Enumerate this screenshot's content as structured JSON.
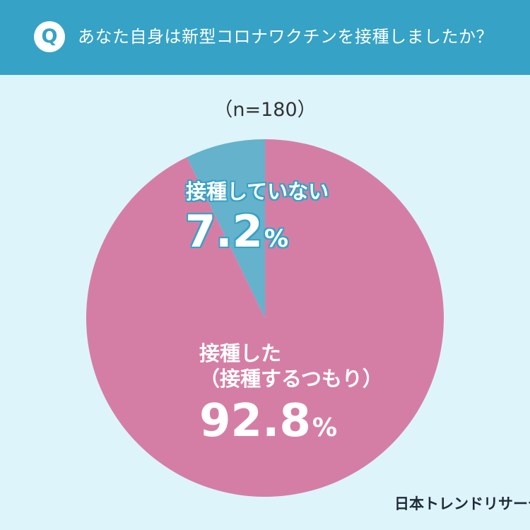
{
  "header": {
    "badge": "Q",
    "question": "あなた自身は新型コロナワクチンを接種しましたか？"
  },
  "sample_size": "（n=180）",
  "logo_text": "日本トレンドリサーチ",
  "colors": {
    "header_bg": "#35a2c6",
    "page_bg": "#ddf4fb",
    "slice_vaccinated": "#d57ea5",
    "slice_not_vaccinated": "#64b2cc"
  },
  "chart_data": {
    "type": "pie",
    "start": "12 o'clock",
    "direction": "clockwise",
    "slices": [
      {
        "label": "接種した",
        "sublabel": "（接種するつもり）",
        "value": 92.8,
        "display_value": "92.8",
        "unit": "%",
        "color": "#d57ea5"
      },
      {
        "label": "接種していない",
        "value": 7.2,
        "display_value": "7.2",
        "unit": "%",
        "color": "#64b2cc"
      }
    ]
  }
}
